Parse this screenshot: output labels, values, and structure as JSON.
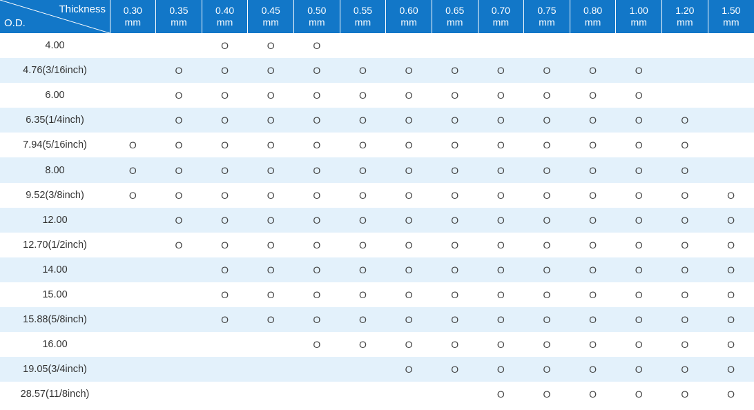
{
  "header": {
    "thickness_label": "Thickness",
    "od_label": "O.D.",
    "columns": [
      {
        "value": "0.30",
        "unit": "mm"
      },
      {
        "value": "0.35",
        "unit": "mm"
      },
      {
        "value": "0.40",
        "unit": "mm"
      },
      {
        "value": "0.45",
        "unit": "mm"
      },
      {
        "value": "0.50",
        "unit": "mm"
      },
      {
        "value": "0.55",
        "unit": "mm"
      },
      {
        "value": "0.60",
        "unit": "mm"
      },
      {
        "value": "0.65",
        "unit": "mm"
      },
      {
        "value": "0.70",
        "unit": "mm"
      },
      {
        "value": "0.75",
        "unit": "mm"
      },
      {
        "value": "0.80",
        "unit": "mm"
      },
      {
        "value": "1.00",
        "unit": "mm"
      },
      {
        "value": "1.20",
        "unit": "mm"
      },
      {
        "value": "1.50",
        "unit": "mm"
      }
    ]
  },
  "rows": [
    {
      "od": "4.00",
      "marks": [
        "",
        "",
        "O",
        "O",
        "O",
        "",
        "",
        "",
        "",
        "",
        "",
        "",
        "",
        ""
      ]
    },
    {
      "od": "4.76(3/16inch)",
      "marks": [
        "",
        "O",
        "O",
        "O",
        "O",
        "O",
        "O",
        "O",
        "O",
        "O",
        "O",
        "O",
        "",
        ""
      ]
    },
    {
      "od": "6.00",
      "marks": [
        "",
        "O",
        "O",
        "O",
        "O",
        "O",
        "O",
        "O",
        "O",
        "O",
        "O",
        "O",
        "",
        ""
      ]
    },
    {
      "od": "6.35(1/4inch)",
      "marks": [
        "",
        "O",
        "O",
        "O",
        "O",
        "O",
        "O",
        "O",
        "O",
        "O",
        "O",
        "O",
        "O",
        ""
      ]
    },
    {
      "od": "7.94(5/16inch)",
      "marks": [
        "O",
        "O",
        "O",
        "O",
        "O",
        "O",
        "O",
        "O",
        "O",
        "O",
        "O",
        "O",
        "O",
        ""
      ]
    },
    {
      "od": "8.00",
      "marks": [
        "O",
        "O",
        "O",
        "O",
        "O",
        "O",
        "O",
        "O",
        "O",
        "O",
        "O",
        "O",
        "O",
        ""
      ]
    },
    {
      "od": "9.52(3/8inch)",
      "marks": [
        "O",
        "O",
        "O",
        "O",
        "O",
        "O",
        "O",
        "O",
        "O",
        "O",
        "O",
        "O",
        "O",
        "O"
      ]
    },
    {
      "od": "12.00",
      "marks": [
        "",
        "O",
        "O",
        "O",
        "O",
        "O",
        "O",
        "O",
        "O",
        "O",
        "O",
        "O",
        "O",
        "O"
      ]
    },
    {
      "od": "12.70(1/2inch)",
      "marks": [
        "",
        "O",
        "O",
        "O",
        "O",
        "O",
        "O",
        "O",
        "O",
        "O",
        "O",
        "O",
        "O",
        "O"
      ]
    },
    {
      "od": "14.00",
      "marks": [
        "",
        "",
        "O",
        "O",
        "O",
        "O",
        "O",
        "O",
        "O",
        "O",
        "O",
        "O",
        "O",
        "O"
      ]
    },
    {
      "od": "15.00",
      "marks": [
        "",
        "",
        "O",
        "O",
        "O",
        "O",
        "O",
        "O",
        "O",
        "O",
        "O",
        "O",
        "O",
        "O"
      ]
    },
    {
      "od": "15.88(5/8inch)",
      "marks": [
        "",
        "",
        "O",
        "O",
        "O",
        "O",
        "O",
        "O",
        "O",
        "O",
        "O",
        "O",
        "O",
        "O"
      ]
    },
    {
      "od": "16.00",
      "marks": [
        "",
        "",
        "",
        "",
        "O",
        "O",
        "O",
        "O",
        "O",
        "O",
        "O",
        "O",
        "O",
        "O"
      ]
    },
    {
      "od": "19.05(3/4inch)",
      "marks": [
        "",
        "",
        "",
        "",
        "",
        "",
        "O",
        "O",
        "O",
        "O",
        "O",
        "O",
        "O",
        "O"
      ]
    },
    {
      "od": "28.57(11/8inch)",
      "marks": [
        "",
        "",
        "",
        "",
        "",
        "",
        "",
        "",
        "O",
        "O",
        "O",
        "O",
        "O",
        "O"
      ]
    }
  ]
}
